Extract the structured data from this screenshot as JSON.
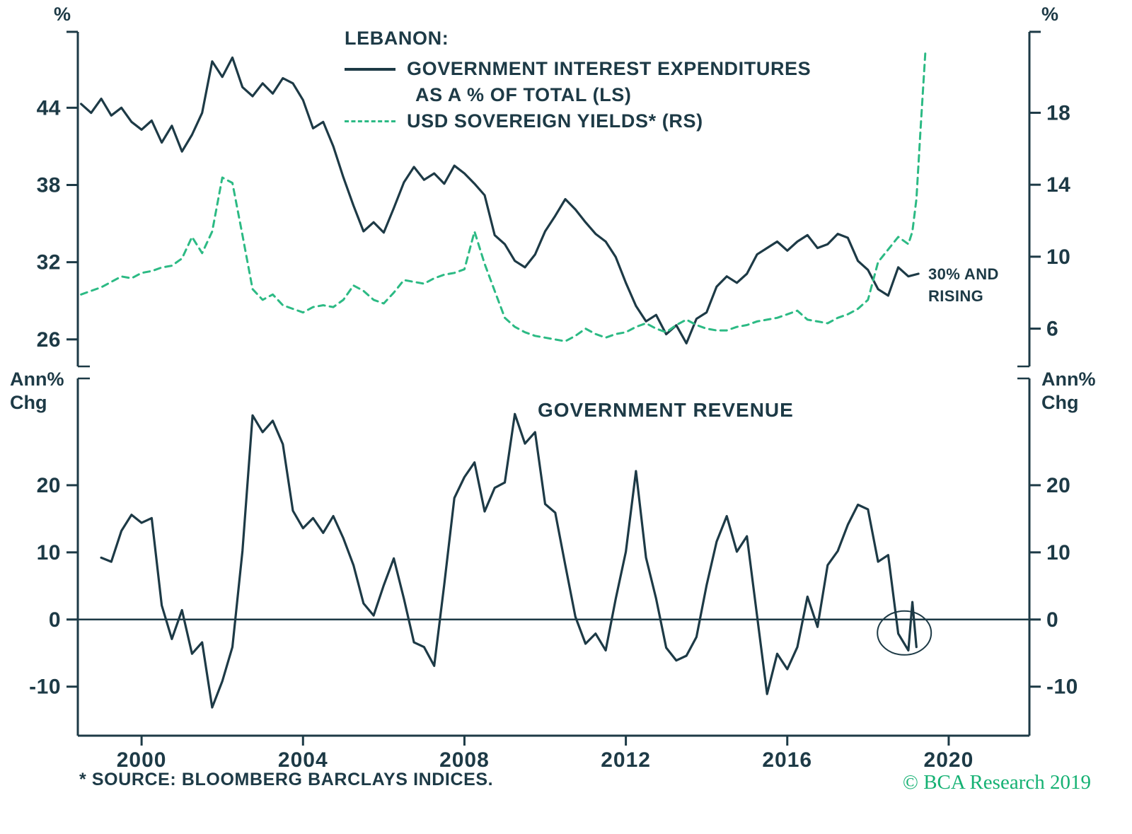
{
  "header": {
    "legend_title": "LEBANON:",
    "series1_label_line1": "GOVERNMENT INTEREST EXPENDITURES",
    "series1_label_line2": "AS A % OF TOTAL (LS)",
    "series2_label": "USD SOVEREIGN YIELDS* (RS)"
  },
  "annotations": {
    "rising": "30% AND RISING",
    "bottom_title": "GOVERNMENT REVENUE",
    "circle": {
      "x": 2018.9,
      "value": -2.0
    }
  },
  "axes": {
    "top_left_unit": "%",
    "top_right_unit": "%",
    "bottom_unit_line1": "Ann%",
    "bottom_unit_line2": "Chg"
  },
  "footer": {
    "source": "* SOURCE: BLOOMBERG BARCLAYS INDICES.",
    "credit": "© BCA Research 2019"
  },
  "colors": {
    "dark": "#1d3a46",
    "green": "#2cba84",
    "credit_green": "#15b173"
  },
  "chart_data": [
    {
      "type": "line",
      "title": "LEBANON: GOVERNMENT INTEREST EXPENDITURES AS A % OF TOTAL (LS) vs USD SOVEREIGN YIELDS (RS)",
      "x_range": [
        1998.42,
        2022.0
      ],
      "x_ticks": [
        2000,
        2004,
        2008,
        2012,
        2016,
        2020
      ],
      "left_axis": {
        "label": "%",
        "ticks": [
          44,
          38,
          32,
          26
        ],
        "range": [
          23.9,
          49.9
        ]
      },
      "right_axis": {
        "label": "%",
        "ticks": [
          18,
          14,
          10,
          6
        ],
        "range": [
          3.9,
          22.5
        ]
      },
      "series": [
        {
          "name": "GOVERNMENT INTEREST EXPENDITURES AS A % OF TOTAL (LS)",
          "axis": "left",
          "style": "solid",
          "color": "dark",
          "x_start": 1998.5,
          "x_step": 0.25,
          "values": [
            44.3,
            43.6,
            44.7,
            43.4,
            44.0,
            42.9,
            42.3,
            43.0,
            41.3,
            42.6,
            40.6,
            41.9,
            43.6,
            47.6,
            46.4,
            47.9,
            45.6,
            44.9,
            45.9,
            45.1,
            46.3,
            45.9,
            44.6,
            42.4,
            42.9,
            41.0,
            38.6,
            36.4,
            34.4,
            35.1,
            34.3,
            36.2,
            38.2,
            39.4,
            38.4,
            38.9,
            38.1,
            39.5,
            38.9,
            38.1,
            37.2,
            34.1,
            33.4,
            32.1,
            31.6,
            32.6,
            34.4,
            35.6,
            36.9,
            36.1,
            35.1,
            34.2,
            33.6,
            32.4,
            30.4,
            28.6,
            27.4,
            27.9,
            26.4,
            27.1,
            25.7,
            27.6,
            28.1,
            30.1,
            30.9,
            30.4,
            31.1,
            32.6,
            33.1,
            33.6,
            32.9,
            33.6,
            34.1,
            33.1,
            33.4,
            34.2,
            33.9,
            32.1,
            31.4,
            29.9,
            29.4,
            31.6,
            30.9,
            31.1
          ]
        },
        {
          "name": "USD SOVEREIGN YIELDS* (RS)",
          "axis": "right",
          "style": "dashed",
          "color": "green",
          "x_start": 1998.5,
          "x_step": 0.25,
          "values": [
            7.9,
            8.1,
            8.3,
            8.6,
            8.9,
            8.8,
            9.1,
            9.2,
            9.4,
            9.5,
            9.9,
            11.1,
            10.2,
            11.4,
            14.4,
            14.1,
            11.2,
            8.2,
            7.6,
            7.9,
            7.3,
            7.1,
            6.9,
            7.2,
            7.3,
            7.2,
            7.6,
            8.4,
            8.1,
            7.6,
            7.4,
            8.0,
            8.7,
            8.6,
            8.5,
            8.8,
            9.0,
            9.1,
            9.3,
            11.4,
            9.6,
            8.1,
            6.6,
            6.1,
            5.8,
            5.6,
            5.5,
            5.4,
            5.3,
            5.6,
            6.0,
            5.7,
            5.5,
            5.7,
            5.8,
            6.1,
            6.3,
            6.0,
            5.8,
            6.2,
            6.5,
            6.2,
            6.0,
            5.9,
            5.9,
            6.1,
            6.2,
            6.4,
            6.5,
            6.6,
            6.8,
            7.0,
            6.5,
            6.4,
            6.3,
            6.6,
            6.8,
            7.1,
            7.6,
            9.7,
            10.4,
            11.1,
            10.7
          ],
          "tail": [
            [
              2019.1,
              11.4
            ],
            [
              2019.2,
              13.2
            ],
            [
              2019.3,
              17.0
            ],
            [
              2019.42,
              21.3
            ]
          ]
        }
      ]
    },
    {
      "type": "line",
      "title": "GOVERNMENT REVENUE",
      "x_range": [
        1998.42,
        2022.0
      ],
      "x_ticks": [
        2000,
        2004,
        2008,
        2012,
        2016,
        2020
      ],
      "left_axis": {
        "label": "Ann% Chg",
        "ticks": [
          20,
          10,
          0,
          -10
        ],
        "range": [
          -17.3,
          35.9
        ]
      },
      "right_axis": {
        "label": "Ann% Chg",
        "ticks": [
          20,
          10,
          0,
          -10
        ],
        "range": [
          -17.3,
          35.9
        ]
      },
      "zero_line": true,
      "series": [
        {
          "name": "GOVERNMENT REVENUE (Ann% Chg)",
          "axis": "left",
          "style": "solid",
          "color": "dark",
          "x_start": 1999.0,
          "x_step": 0.25,
          "values": [
            9.2,
            8.6,
            13.2,
            15.6,
            14.4,
            15.1,
            2.1,
            -2.9,
            1.4,
            -5.1,
            -3.4,
            -13.1,
            -9.2,
            -4.1,
            10.2,
            30.4,
            27.9,
            29.6,
            26.1,
            16.2,
            13.6,
            15.1,
            12.9,
            15.4,
            12.1,
            8.1,
            2.4,
            0.6,
            5.1,
            9.1,
            3.1,
            -3.4,
            -4.1,
            -6.9,
            5.2,
            18.1,
            21.2,
            23.4,
            16.1,
            19.6,
            20.4,
            30.6,
            26.2,
            27.9,
            17.2,
            15.9,
            8.1,
            0.4,
            -3.6,
            -2.1,
            -4.6,
            3.1,
            10.1,
            22.1,
            9.2,
            3.1,
            -4.2,
            -6.1,
            -5.4,
            -2.6,
            5.1,
            11.6,
            15.4,
            10.1,
            12.4,
            0.6,
            -11.1,
            -5.1,
            -7.4,
            -4.1,
            3.4,
            -1.1,
            8.1,
            10.2,
            14.1,
            17.1,
            16.4,
            8.6,
            9.6,
            -2.1,
            -4.6
          ],
          "tail": [
            [
              2019.1,
              2.6
            ],
            [
              2019.2,
              -4.1
            ]
          ]
        }
      ]
    }
  ]
}
